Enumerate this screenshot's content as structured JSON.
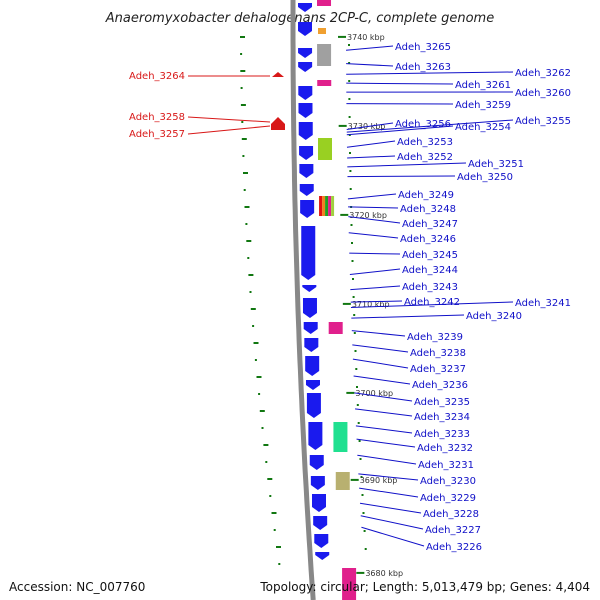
{
  "title": "Anaeromyxobacter dehalogenans 2CP-C, complete genome",
  "footer": {
    "accession": "Accession: NC_007760",
    "summary": "Topology: circular; Length: 5,013,479 bp; Genes: 4,404"
  },
  "colors": {
    "forward_gene": "#1a1aee",
    "backbone": "#888888",
    "label_blue": "#1010c8",
    "label_red": "#d81818",
    "tick_green": "#117711"
  },
  "kbp_ticks": [
    {
      "kb": 3740,
      "label": "3740 kbp"
    },
    {
      "kb": 3730,
      "label": "3730 kbp"
    },
    {
      "kb": 3720,
      "label": "3720 kbp"
    },
    {
      "kb": 3710,
      "label": "3710 kbp"
    },
    {
      "kb": 3700,
      "label": "3700 kbp"
    },
    {
      "kb": 3690,
      "label": "3690 kbp"
    },
    {
      "kb": 3680,
      "label": "3680 kbp"
    }
  ],
  "genes_right": [
    {
      "id": "Adeh_3265",
      "kb": 3738.5,
      "color": "#a0a0a0"
    },
    {
      "id": "Adeh_3263",
      "kb": 3737.0,
      "color": "#1a1aee"
    },
    {
      "id": "Adeh_3262",
      "kb": 3735.8,
      "color": "#e0208c"
    },
    {
      "id": "Adeh_3261",
      "kb": 3734.8,
      "color": "#1a1aee"
    },
    {
      "id": "Adeh_3260",
      "kb": 3733.8,
      "color": "#1a1aee"
    },
    {
      "id": "Adeh_3259",
      "kb": 3732.5,
      "color": "#1a1aee"
    },
    {
      "id": "Adeh_3256",
      "kb": 3729.6,
      "color": "#1a1aee"
    },
    {
      "id": "Adeh_3255",
      "kb": 3729.3,
      "color": "#1a1aee"
    },
    {
      "id": "Adeh_3254",
      "kb": 3729.0,
      "color": "#1a1aee"
    },
    {
      "id": "Adeh_3253",
      "kb": 3727.6,
      "color": "#99d022"
    },
    {
      "id": "Adeh_3252",
      "kb": 3726.4,
      "color": "#1a1aee"
    },
    {
      "id": "Adeh_3251",
      "kb": 3725.4,
      "color": "#1a1aee"
    },
    {
      "id": "Adeh_3250",
      "kb": 3724.3,
      "color": "#1a1aee"
    },
    {
      "id": "Adeh_3249",
      "kb": 3721.8,
      "color": "#1a1aee"
    },
    {
      "id": "Adeh_3248",
      "kb": 3720.9,
      "color": "#d04040"
    },
    {
      "id": "Adeh_3247",
      "kb": 3719.8,
      "color": "#1a1aee"
    },
    {
      "id": "Adeh_3246",
      "kb": 3718.0,
      "color": "#1a1aee"
    },
    {
      "id": "Adeh_3245",
      "kb": 3715.7,
      "color": "#1a1aee"
    },
    {
      "id": "Adeh_3244",
      "kb": 3713.3,
      "color": "#1a1aee"
    },
    {
      "id": "Adeh_3243",
      "kb": 3711.6,
      "color": "#1a1aee"
    },
    {
      "id": "Adeh_3242",
      "kb": 3710.2,
      "color": "#707070"
    },
    {
      "id": "Adeh_3241",
      "kb": 3709.6,
      "color": "#1a1aee"
    },
    {
      "id": "Adeh_3240",
      "kb": 3708.4,
      "color": "#1a1aee"
    },
    {
      "id": "Adeh_3239",
      "kb": 3707.0,
      "color": "#e0208c"
    },
    {
      "id": "Adeh_3238",
      "kb": 3705.4,
      "color": "#1a1aee"
    },
    {
      "id": "Adeh_3237",
      "kb": 3703.8,
      "color": "#1a1aee"
    },
    {
      "id": "Adeh_3236",
      "kb": 3701.9,
      "color": "#1a1aee"
    },
    {
      "id": "Adeh_3235",
      "kb": 3700.0,
      "color": "#1a1aee"
    },
    {
      "id": "Adeh_3234",
      "kb": 3698.2,
      "color": "#1a1aee"
    },
    {
      "id": "Adeh_3233",
      "kb": 3696.3,
      "color": "#20e090"
    },
    {
      "id": "Adeh_3232",
      "kb": 3694.8,
      "color": "#1a1aee"
    },
    {
      "id": "Adeh_3231",
      "kb": 3693.0,
      "color": "#1a1aee"
    },
    {
      "id": "Adeh_3230",
      "kb": 3690.9,
      "color": "#b8b070"
    },
    {
      "id": "Adeh_3229",
      "kb": 3689.3,
      "color": "#1a1aee"
    },
    {
      "id": "Adeh_3228",
      "kb": 3687.6,
      "color": "#1a1aee"
    },
    {
      "id": "Adeh_3227",
      "kb": 3686.2,
      "color": "#1a1aee"
    },
    {
      "id": "Adeh_3226",
      "kb": 3684.9,
      "color": "#1a1aee"
    }
  ],
  "genes_left": [
    {
      "id": "Adeh_3264",
      "kb": 3736.4,
      "color": "#e01010"
    },
    {
      "id": "Adeh_3258",
      "kb": 3730.7,
      "color": "#e01010"
    },
    {
      "id": "Adeh_3257",
      "kb": 3730.2,
      "color": "#e01010"
    }
  ]
}
